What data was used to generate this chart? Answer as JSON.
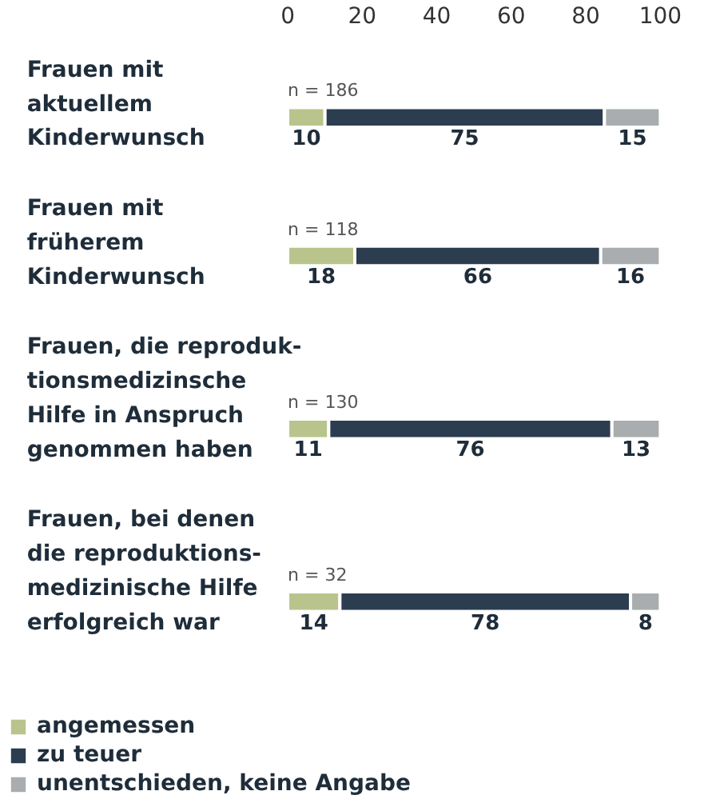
{
  "chart_data": {
    "type": "bar",
    "orientation": "horizontal",
    "stacked": true,
    "categories": [
      "Frauen mit\naktuellem\nKinderwunsch",
      "Frauen mit\nfrüherem\nKinderwunsch",
      "Frauen, die reproduk-\ntionsmedizinsche\nHilfe in Anspruch\ngenommen haben",
      "Frauen, bei denen\ndie reproduktions-\nmedizinische Hilfe\nerfolgreich war"
    ],
    "series": [
      {
        "name": "angemessen",
        "color": "#b8c48c",
        "values": [
          10,
          18,
          11,
          14
        ]
      },
      {
        "name": "zu teuer",
        "color": "#2b3d4f",
        "values": [
          75,
          66,
          76,
          78
        ]
      },
      {
        "name": "unentschieden, keine Angabe",
        "color": "#a9adaf",
        "values": [
          15,
          16,
          13,
          8
        ]
      }
    ],
    "xlim": [
      0,
      100
    ],
    "xticks": [
      0,
      20,
      40,
      60,
      80,
      100
    ],
    "annotations": [
      "n = 186",
      "n = 118",
      "n = 130",
      "n = 32"
    ],
    "data_labels": true,
    "legend": "bottom left",
    "grid": false
  }
}
